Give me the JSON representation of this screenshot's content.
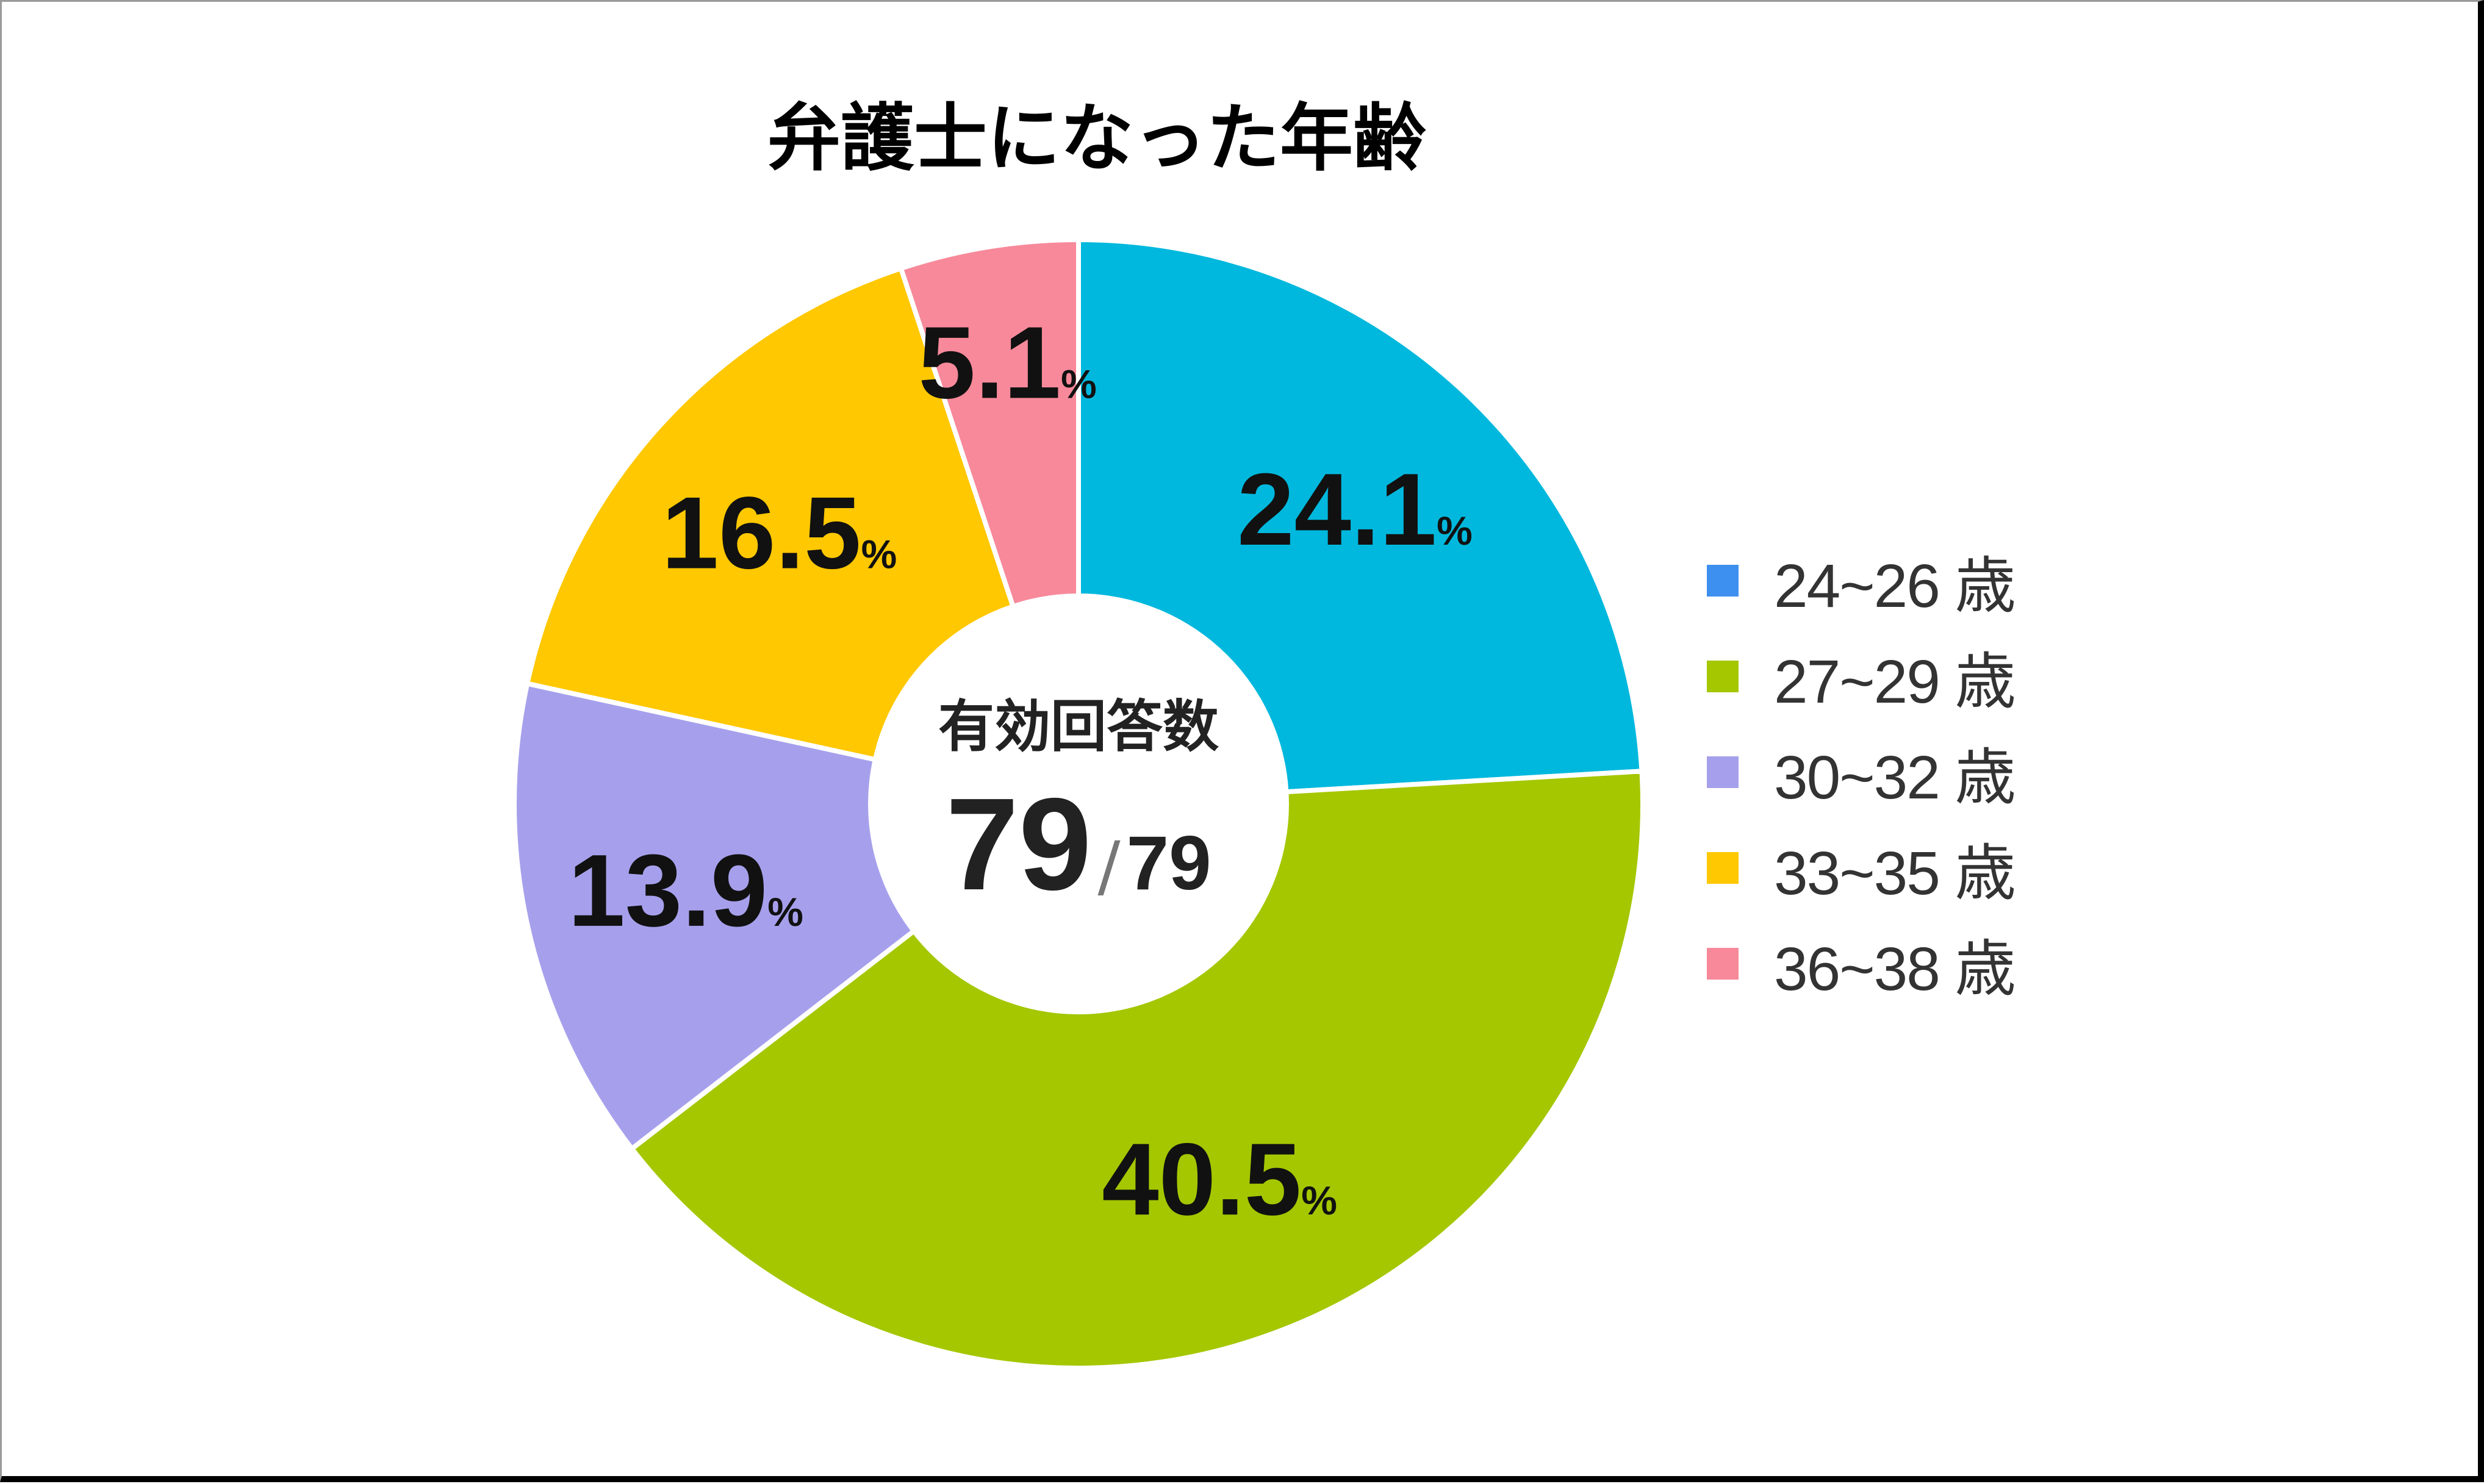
{
  "chart_data": {
    "type": "pie",
    "title": "弁護士になった年齢",
    "percent_symbol": "%",
    "center": {
      "caption": "有効回答数",
      "value": "79",
      "separator": "/",
      "total": "79"
    },
    "slices": [
      {
        "label": "24~26 歳",
        "value": 24.1,
        "display": "24.1",
        "color": "#00B8DD",
        "legend_color": "#3D8FF0"
      },
      {
        "label": "27~29 歳",
        "value": 40.5,
        "display": "40.5",
        "color": "#A4C700",
        "legend_color": "#A4C700"
      },
      {
        "label": "30~32 歳",
        "value": 13.9,
        "display": "13.9",
        "color": "#A6A0EC",
        "legend_color": "#A6A0EC"
      },
      {
        "label": "33~35 歳",
        "value": 16.5,
        "display": "16.5",
        "color": "#FFC800",
        "legend_color": "#FFC800"
      },
      {
        "label": "36~38 歳",
        "value": 5.1,
        "display": "5.1",
        "color": "#F7899A",
        "legend_color": "#F7899A"
      }
    ],
    "legend_position": "right"
  }
}
